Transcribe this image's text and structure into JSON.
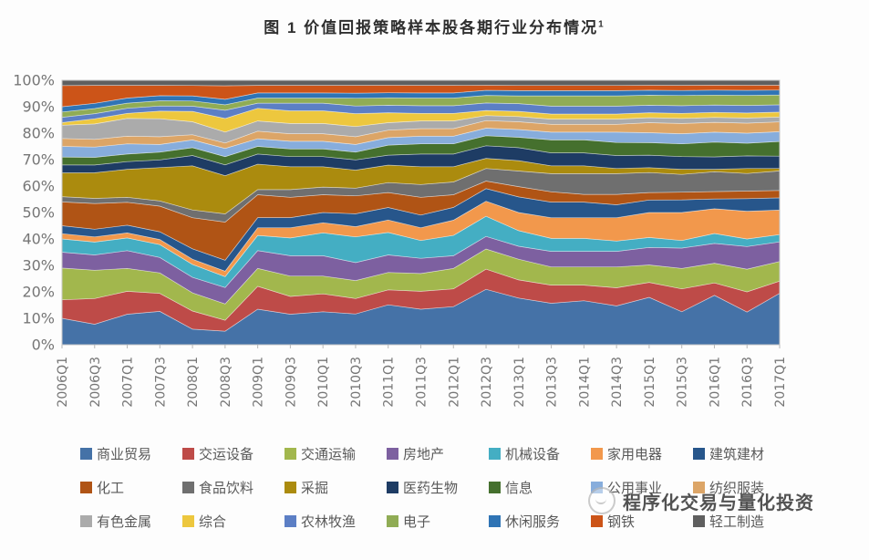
{
  "title": {
    "text": "图 1  价值回报策略样本股各期行业分布情况",
    "superscript": "1"
  },
  "watermark": {
    "text": "程序化交易与量化投资"
  },
  "chart_data": {
    "type": "area",
    "stacking": "percent",
    "title": "图 1 价值回报策略样本股各期行业分布情况",
    "xlabel": "",
    "ylabel": "",
    "ylim": [
      0,
      100
    ],
    "grid": false,
    "legend_position": "bottom",
    "y_ticks": [
      "0%",
      "10%",
      "20%",
      "30%",
      "40%",
      "50%",
      "60%",
      "70%",
      "80%",
      "90%",
      "100%"
    ],
    "x": [
      "2006Q1",
      "2006Q3",
      "2007Q1",
      "2007Q3",
      "2008Q1",
      "2008Q3",
      "2009Q1",
      "2009Q3",
      "2010Q1",
      "2010Q3",
      "2011Q1",
      "2011Q3",
      "2012Q1",
      "2012Q3",
      "2013Q1",
      "2013Q3",
      "2014Q1",
      "2014Q3",
      "2015Q1",
      "2015Q3",
      "2016Q1",
      "2016Q3",
      "2017Q1"
    ],
    "series": [
      {
        "name": "商业贸易",
        "color": "#4572A7",
        "values": [
          10,
          8,
          12,
          13,
          6,
          5,
          14,
          12,
          13,
          12,
          16,
          14,
          15,
          22,
          18,
          16,
          17,
          15,
          19,
          13,
          20,
          13,
          21
        ]
      },
      {
        "name": "交运设备",
        "color": "#BE4B48",
        "values": [
          7,
          10,
          9,
          7,
          7,
          4,
          9,
          7,
          7,
          6,
          6,
          7,
          7,
          8,
          7,
          7,
          6,
          7,
          6,
          9,
          5,
          8,
          5
        ]
      },
      {
        "name": "交通运输",
        "color": "#A2B74D",
        "values": [
          12,
          11,
          9,
          8,
          7,
          6,
          7,
          8,
          7,
          7,
          7,
          7,
          8,
          8,
          8,
          7,
          7,
          8,
          7,
          8,
          8,
          9,
          8
        ]
      },
      {
        "name": "房地产",
        "color": "#7D60A0",
        "values": [
          6,
          6,
          7,
          6,
          6,
          6,
          7,
          8,
          8,
          7,
          7,
          6,
          5,
          5,
          5,
          6,
          6,
          6,
          7,
          8,
          8,
          9,
          8
        ]
      },
      {
        "name": "机械设备",
        "color": "#44AEC3",
        "values": [
          5,
          5,
          5,
          5,
          5,
          4,
          6,
          7,
          9,
          10,
          9,
          7,
          8,
          8,
          6,
          5,
          5,
          4,
          4,
          3,
          4,
          3,
          3
        ]
      },
      {
        "name": "家用电器",
        "color": "#F2984C",
        "values": [
          2,
          2,
          2,
          2,
          2,
          2,
          3,
          4,
          4,
          4,
          5,
          5,
          6,
          6,
          7,
          8,
          8,
          9,
          10,
          11,
          10,
          11,
          10
        ]
      },
      {
        "name": "建筑建材",
        "color": "#27568B",
        "values": [
          3,
          3,
          3,
          3,
          4,
          4,
          4,
          4,
          4,
          5,
          5,
          5,
          5,
          5,
          6,
          6,
          6,
          5,
          5,
          5,
          4,
          5,
          5
        ]
      },
      {
        "name": "化工",
        "color": "#B05415",
        "values": [
          9,
          10,
          9,
          10,
          12,
          14,
          9,
          8,
          7,
          7,
          6,
          7,
          5,
          3,
          4,
          4,
          3,
          4,
          3,
          3,
          3,
          3,
          3
        ]
      },
      {
        "name": "食品饮料",
        "color": "#6F6F6F",
        "values": [
          2,
          2,
          2,
          2,
          3,
          3,
          2,
          3,
          3,
          3,
          4,
          5,
          5,
          5,
          6,
          7,
          8,
          8,
          8,
          7,
          8,
          7,
          8
        ]
      },
      {
        "name": "采掘",
        "color": "#AB8B0E",
        "values": [
          9,
          10,
          11,
          13,
          17,
          14,
          10,
          9,
          8,
          7,
          7,
          7,
          6,
          4,
          4,
          3,
          3,
          2,
          2,
          2,
          1,
          2,
          1
        ]
      },
      {
        "name": "医药生物",
        "color": "#1E3C64",
        "values": [
          3,
          3,
          3,
          3,
          4,
          4,
          4,
          4,
          4,
          4,
          4,
          5,
          5,
          5,
          5,
          5,
          5,
          5,
          5,
          5,
          5,
          5,
          5
        ]
      },
      {
        "name": "信息",
        "color": "#45702E",
        "values": [
          3,
          3,
          3,
          3,
          3,
          3,
          3,
          3,
          3,
          3,
          4,
          4,
          4,
          4,
          4,
          5,
          5,
          5,
          5,
          5,
          6,
          5,
          6
        ]
      },
      {
        "name": "公用事业",
        "color": "#87ADDC",
        "values": [
          4,
          4,
          4,
          3,
          3,
          3,
          3,
          3,
          3,
          3,
          3,
          3,
          3,
          3,
          3,
          3,
          3,
          4,
          4,
          4,
          4,
          4,
          4
        ]
      },
      {
        "name": "纺织服装",
        "color": "#DCA567",
        "values": [
          3,
          3,
          3,
          3,
          2,
          2,
          3,
          3,
          3,
          3,
          3,
          3,
          3,
          3,
          3,
          3,
          3,
          3,
          4,
          4,
          4,
          4,
          4
        ]
      },
      {
        "name": "有色金属",
        "color": "#ABABAB",
        "values": [
          5,
          6,
          7,
          7,
          5,
          4,
          4,
          4,
          4,
          4,
          3,
          3,
          3,
          2,
          2,
          2,
          2,
          2,
          2,
          2,
          2,
          2,
          2
        ]
      },
      {
        "name": "综合",
        "color": "#EDC73E",
        "values": [
          1,
          2,
          2,
          3,
          4,
          5,
          5,
          5,
          5,
          5,
          4,
          3,
          3,
          2,
          2,
          2,
          2,
          2,
          2,
          2,
          2,
          2,
          2
        ]
      },
      {
        "name": "农林牧渔",
        "color": "#5C7FC5",
        "values": [
          2,
          2,
          2,
          2,
          2,
          3,
          2,
          3,
          3,
          3,
          3,
          3,
          3,
          3,
          3,
          3,
          3,
          3,
          3,
          3,
          3,
          3,
          3
        ]
      },
      {
        "name": "电子",
        "color": "#90AC55",
        "values": [
          2,
          2,
          2,
          2,
          2,
          2,
          2,
          2,
          2,
          3,
          3,
          3,
          3,
          3,
          3,
          4,
          4,
          4,
          4,
          4,
          4,
          4,
          4
        ]
      },
      {
        "name": "休闲服务",
        "color": "#2F74B5",
        "values": [
          2,
          2,
          2,
          2,
          2,
          2,
          2,
          2,
          2,
          2,
          2,
          2,
          2,
          2,
          2,
          2,
          2,
          2,
          2,
          2,
          2,
          2,
          2
        ]
      },
      {
        "name": "钢铁",
        "color": "#CC5418",
        "values": [
          8,
          7,
          5,
          4,
          4,
          5,
          3,
          3,
          3,
          3,
          3,
          3,
          3,
          2,
          2,
          2,
          2,
          2,
          2,
          2,
          2,
          2,
          2
        ]
      },
      {
        "name": "轻工制造",
        "color": "#5F5F5F",
        "values": [
          2,
          2,
          2,
          2,
          2,
          2,
          2,
          2,
          2,
          2,
          2,
          2,
          2,
          2,
          2,
          2,
          2,
          2,
          2,
          2,
          2,
          2,
          2
        ]
      }
    ]
  }
}
